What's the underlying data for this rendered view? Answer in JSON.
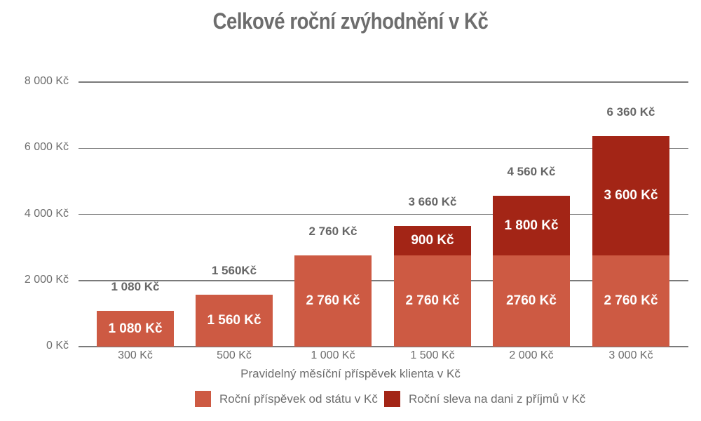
{
  "chart_data": {
    "type": "bar",
    "stacked": true,
    "title": "Celkové roční zvýhodnění v Kč",
    "xlabel": "Pravidelný měsíční příspěvek klienta v Kč",
    "ylabel": "",
    "ylim": [
      0,
      8000
    ],
    "yticks": [
      0,
      2000,
      4000,
      6000,
      8000
    ],
    "ytick_labels": [
      "0 Kč",
      "2 000 Kč",
      "4 000 Kč",
      "6 000 Kč",
      "8 000 Kč"
    ],
    "grid": true,
    "legend_position": "bottom",
    "categories": [
      "300 Kč",
      "500 Kč",
      "1 000 Kč",
      "1 500 Kč",
      "2 000 Kč",
      "3 000 Kč"
    ],
    "series": [
      {
        "name": "Roční příspěvek od státu v Kč",
        "color": "#cd5a43",
        "values": [
          1080,
          1560,
          2760,
          2760,
          2760,
          2760
        ],
        "labels": [
          "1 080 Kč",
          "1 560 Kč",
          "2 760 Kč",
          "2 760 Kč",
          "2760 Kč",
          "2 760 Kč"
        ]
      },
      {
        "name": "Roční sleva na dani z příjmů v Kč",
        "color": "#a32516",
        "values": [
          0,
          0,
          0,
          900,
          1800,
          3600
        ],
        "labels": [
          "",
          "",
          "",
          "900 Kč",
          "1 800 Kč",
          "3 600 Kč"
        ]
      }
    ],
    "totals": [
      1080,
      1560,
      2760,
      3660,
      4560,
      6360
    ],
    "total_labels": [
      "1 080 Kč",
      "1 560Kč",
      "2 760 Kč",
      "3 660 Kč",
      "4 560 Kč",
      "6 360 Kč"
    ]
  },
  "title": "Celkové roční zvýhodnění v Kč",
  "xlabel": "Pravidelný měsíční příspěvek klienta v Kč",
  "yaxis": {
    "ticks": [
      "0 Kč",
      "2 000 Kč",
      "4 000 Kč",
      "6 000 Kč",
      "8 000 Kč"
    ]
  },
  "legend": [
    {
      "label": "Roční příspěvek od státu v Kč",
      "color": "#cd5a43"
    },
    {
      "label": "Roční sleva na dani z příjmů v Kč",
      "color": "#a32516"
    }
  ]
}
